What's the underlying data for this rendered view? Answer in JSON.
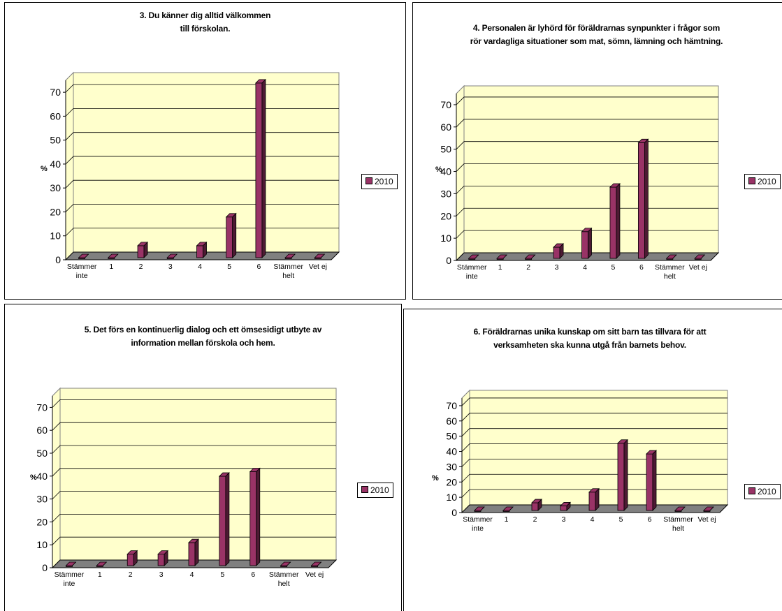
{
  "charts": [
    {
      "title_lines": [
        "3. Du känner dig alltid välkommen",
        "till förskolan."
      ],
      "ylabel": "%",
      "legend": "2010"
    },
    {
      "title_lines": [
        "4. Personalen är lyhörd för föräldrarnas synpunkter i frågor som",
        "rör vardagliga situationer som mat, sömn, lämning och hämtning."
      ],
      "ylabel": "%",
      "legend": "2010"
    },
    {
      "title_lines": [
        "5. Det förs en kontinuerlig dialog och ett ömsesidigt utbyte av",
        "information mellan förskola och hem."
      ],
      "ylabel": "%",
      "legend": "2010"
    },
    {
      "title_lines": [
        "6. Föräldrarnas unika kunskap om sitt barn tas tillvara för att",
        "verksamheten ska kunna utgå från barnets behov."
      ],
      "ylabel": "%",
      "legend": "2010"
    }
  ],
  "chart_data": [
    {
      "type": "bar",
      "title": "3. Du känner dig alltid välkommen till förskolan.",
      "categories": [
        [
          "Stämmer",
          "inte"
        ],
        [
          "1"
        ],
        [
          "2"
        ],
        [
          "3"
        ],
        [
          "4"
        ],
        [
          "5"
        ],
        [
          "6"
        ],
        [
          "Stämmer",
          "helt"
        ],
        [
          "Vet ej"
        ]
      ],
      "series": [
        {
          "name": "2010",
          "values": [
            0,
            0,
            5,
            0,
            5,
            17,
            73,
            0,
            0
          ]
        }
      ],
      "ylabel": "%",
      "yticks": [
        0,
        10,
        20,
        30,
        40,
        50,
        60,
        70
      ],
      "ylim": [
        0,
        75
      ],
      "grid": true,
      "legend_position": "right",
      "colors": {
        "bar": "#993366",
        "bar_side": "#4d1a33",
        "wall": "#ffffcc",
        "floor": "#808080"
      }
    },
    {
      "type": "bar",
      "title": "4. Personalen är lyhörd för föräldrarnas synpunkter i frågor som rör vardagliga situationer som mat, sömn, lämning och hämtning.",
      "categories": [
        [
          "Stämmer",
          "inte"
        ],
        [
          "1"
        ],
        [
          "2"
        ],
        [
          "3"
        ],
        [
          "4"
        ],
        [
          "5"
        ],
        [
          "6"
        ],
        [
          "Stämmer",
          "helt"
        ],
        [
          "Vet ej"
        ]
      ],
      "series": [
        {
          "name": "2010",
          "values": [
            0,
            0,
            0,
            5,
            12,
            32,
            52,
            0,
            0
          ]
        }
      ],
      "ylabel": "%",
      "yticks": [
        0,
        10,
        20,
        30,
        40,
        50,
        60,
        70
      ],
      "ylim": [
        0,
        75
      ],
      "grid": true,
      "legend_position": "right",
      "colors": {
        "bar": "#993366",
        "bar_side": "#4d1a33",
        "wall": "#ffffcc",
        "floor": "#808080"
      }
    },
    {
      "type": "bar",
      "title": "5. Det förs en kontinuerlig dialog och ett ömsesidigt utbyte av information mellan förskola och hem.",
      "categories": [
        [
          "Stämmer",
          "inte"
        ],
        [
          "1"
        ],
        [
          "2"
        ],
        [
          "3"
        ],
        [
          "4"
        ],
        [
          "5"
        ],
        [
          "6"
        ],
        [
          "Stämmer",
          "helt"
        ],
        [
          "Vet ej"
        ]
      ],
      "series": [
        {
          "name": "2010",
          "values": [
            0,
            0,
            5,
            5,
            10,
            39,
            41,
            0,
            0
          ]
        }
      ],
      "ylabel": "%",
      "yticks": [
        0,
        10,
        20,
        30,
        40,
        50,
        60,
        70
      ],
      "ylim": [
        0,
        75
      ],
      "grid": true,
      "legend_position": "right",
      "colors": {
        "bar": "#993366",
        "bar_side": "#4d1a33",
        "wall": "#ffffcc",
        "floor": "#808080"
      }
    },
    {
      "type": "bar",
      "title": "6. Föräldrarnas unika kunskap om sitt barn tas tillvara för att verksamheten ska kunna utgå från barnets behov.",
      "categories": [
        [
          "Stämmer",
          "inte"
        ],
        [
          "1"
        ],
        [
          "2"
        ],
        [
          "3"
        ],
        [
          "4"
        ],
        [
          "5"
        ],
        [
          "6"
        ],
        [
          "Stämmer",
          "helt"
        ],
        [
          "Vet ej"
        ]
      ],
      "series": [
        {
          "name": "2010",
          "values": [
            0,
            0,
            5,
            3,
            12,
            44,
            37,
            0,
            0
          ]
        }
      ],
      "ylabel": "%",
      "yticks": [
        0,
        10,
        20,
        30,
        40,
        50,
        60,
        70
      ],
      "ylim": [
        0,
        75
      ],
      "grid": true,
      "legend_position": "right",
      "colors": {
        "bar": "#993366",
        "bar_side": "#4d1a33",
        "wall": "#ffffcc",
        "floor": "#808080"
      }
    }
  ]
}
